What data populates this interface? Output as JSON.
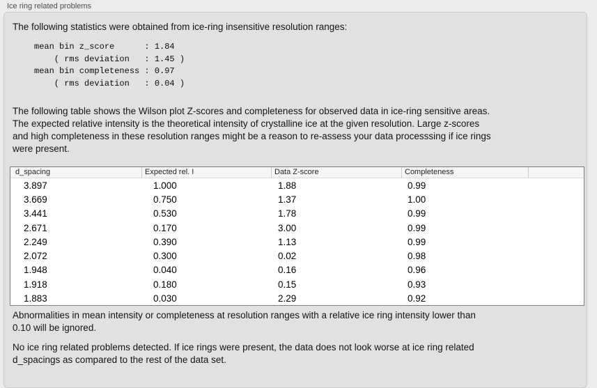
{
  "panel": {
    "title": "Ice ring related problems",
    "stats_intro": "The following statistics were obtained from ice-ring insensitive resolution ranges:",
    "stats_block": "mean bin z_score      : 1.84\n    ( rms deviation   : 1.45 )\nmean bin completeness : 0.97\n    ( rms deviation   : 0.04 )",
    "stats": {
      "mean_bin_z_score": "1.84",
      "z_score_rms_deviation": "1.45",
      "mean_bin_completeness": "0.97",
      "completeness_rms_deviation": "0.04"
    },
    "table_description": "The following table shows the Wilson plot Z-scores and completeness for observed data in ice-ring sensitive areas.\nThe expected relative intensity is the theoretical intensity of crystalline ice at the given resolution. Large z-scores\nand high completeness in these resolution ranges might be a reason to re-assess your data processsing if ice rings\nwere present.",
    "footnote": "Abnormalities in mean intensity or completeness at resolution ranges with a relative ice ring intensity lower than\n0.10 will be ignored.",
    "conclusion": "No ice ring related problems detected. If ice rings were present, the data does not look worse at ice ring related\nd_spacings as compared to the rest of the data set."
  },
  "table": {
    "columns": [
      "d_spacing",
      "Expected rel. I",
      "Data Z-score",
      "Completeness",
      ""
    ],
    "rows": [
      [
        "3.897",
        "1.000",
        "1.88",
        "0.99"
      ],
      [
        "3.669",
        "0.750",
        "1.37",
        "1.00"
      ],
      [
        "3.441",
        "0.530",
        "1.78",
        "0.99"
      ],
      [
        "2.671",
        "0.170",
        "3.00",
        "0.99"
      ],
      [
        "2.249",
        "0.390",
        "1.13",
        "0.99"
      ],
      [
        "2.072",
        "0.300",
        "0.02",
        "0.98"
      ],
      [
        "1.948",
        "0.040",
        "0.16",
        "0.96"
      ],
      [
        "1.918",
        "0.180",
        "0.15",
        "0.93"
      ],
      [
        "1.883",
        "0.030",
        "2.29",
        "0.92"
      ]
    ]
  },
  "colors": {
    "page_bg": "#ececec",
    "panel_bg": "#e1e1e1",
    "panel_border": "#c9c9c9",
    "table_border": "#7d7d7d",
    "table_header_bg": "#f6f6f6"
  }
}
